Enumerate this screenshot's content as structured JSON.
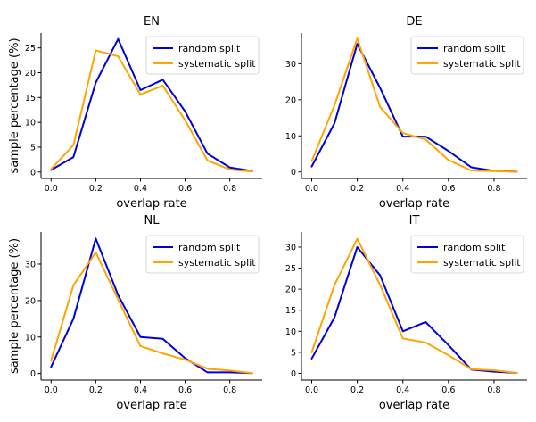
{
  "chart_data": [
    {
      "type": "line",
      "title": "EN",
      "xlabel": "overlap rate",
      "ylabel": "sample percentage (%)",
      "x": [
        0.0,
        0.1,
        0.2,
        0.3,
        0.4,
        0.5,
        0.6,
        0.7,
        0.8,
        0.9
      ],
      "xlim": [
        -0.045,
        0.945
      ],
      "ylim": [
        -1.3,
        28
      ],
      "xticks": [
        "0.0",
        "0.2",
        "0.4",
        "0.6",
        "0.8"
      ],
      "xtick_values": [
        0.0,
        0.2,
        0.4,
        0.6,
        0.8
      ],
      "yticks": [
        "0",
        "5",
        "10",
        "15",
        "20",
        "25"
      ],
      "ytick_values": [
        0,
        5,
        10,
        15,
        20,
        25
      ],
      "legend_position": "upper-right",
      "series": [
        {
          "name": "random split",
          "color": "#0000dd",
          "values": [
            0.4,
            3.0,
            18.0,
            26.8,
            16.5,
            18.6,
            12.2,
            3.7,
            0.9,
            0.2
          ]
        },
        {
          "name": "systematic split",
          "color": "#ffa500",
          "values": [
            0.6,
            5.4,
            24.5,
            23.3,
            15.6,
            17.4,
            10.4,
            2.3,
            0.5,
            0.1
          ]
        }
      ]
    },
    {
      "type": "line",
      "title": "DE",
      "xlabel": "overlap rate",
      "ylabel": "",
      "x": [
        0.0,
        0.1,
        0.2,
        0.3,
        0.4,
        0.5,
        0.6,
        0.7,
        0.8,
        0.9
      ],
      "xlim": [
        -0.045,
        0.945
      ],
      "ylim": [
        -1.8,
        38.5
      ],
      "xticks": [
        "0.0",
        "0.2",
        "0.4",
        "0.6",
        "0.8"
      ],
      "xtick_values": [
        0.0,
        0.2,
        0.4,
        0.6,
        0.8
      ],
      "yticks": [
        "0",
        "10",
        "20",
        "30"
      ],
      "ytick_values": [
        0,
        10,
        20,
        30
      ],
      "legend_position": "upper-right",
      "series": [
        {
          "name": "random split",
          "color": "#0000dd",
          "values": [
            1.5,
            13.5,
            35.5,
            23.3,
            9.8,
            9.8,
            5.8,
            1.3,
            0.3,
            0.1
          ]
        },
        {
          "name": "systematic split",
          "color": "#ffa500",
          "values": [
            3.0,
            18.5,
            37.0,
            18.0,
            10.8,
            9.0,
            3.3,
            0.4,
            0.2,
            0.1
          ]
        }
      ]
    },
    {
      "type": "line",
      "title": "NL",
      "xlabel": "overlap rate",
      "ylabel": "sample percentage (%)",
      "x": [
        0.0,
        0.1,
        0.2,
        0.3,
        0.4,
        0.5,
        0.6,
        0.7,
        0.8,
        0.9
      ],
      "xlim": [
        -0.045,
        0.945
      ],
      "ylim": [
        -1.8,
        38.8
      ],
      "xticks": [
        "0.0",
        "0.2",
        "0.4",
        "0.6",
        "0.8"
      ],
      "xtick_values": [
        0.0,
        0.2,
        0.4,
        0.6,
        0.8
      ],
      "yticks": [
        "0",
        "10",
        "20",
        "30"
      ],
      "ytick_values": [
        0,
        10,
        20,
        30
      ],
      "legend_position": "upper-right",
      "series": [
        {
          "name": "random split",
          "color": "#0000dd",
          "values": [
            1.8,
            15.0,
            37.0,
            21.5,
            10.0,
            9.5,
            4.2,
            0.3,
            0.3,
            0.1
          ]
        },
        {
          "name": "systematic split",
          "color": "#ffa500",
          "values": [
            3.5,
            24.2,
            33.2,
            20.3,
            7.5,
            5.5,
            3.8,
            1.3,
            0.8,
            0.1
          ]
        }
      ]
    },
    {
      "type": "line",
      "title": "IT",
      "xlabel": "overlap rate",
      "ylabel": "",
      "x": [
        0.0,
        0.1,
        0.2,
        0.3,
        0.4,
        0.5,
        0.6,
        0.7,
        0.8,
        0.9
      ],
      "xlim": [
        -0.045,
        0.945
      ],
      "ylim": [
        -1.6,
        33.6
      ],
      "xticks": [
        "0.0",
        "0.2",
        "0.4",
        "0.6",
        "0.8"
      ],
      "xtick_values": [
        0.0,
        0.2,
        0.4,
        0.6,
        0.8
      ],
      "yticks": [
        "0",
        "5",
        "10",
        "15",
        "20",
        "25",
        "30"
      ],
      "ytick_values": [
        0,
        5,
        10,
        15,
        20,
        25,
        30
      ],
      "legend_position": "upper-right",
      "series": [
        {
          "name": "random split",
          "color": "#0000dd",
          "values": [
            3.5,
            13.3,
            30.0,
            23.3,
            10.0,
            12.2,
            6.7,
            0.9,
            0.4,
            0.1
          ]
        },
        {
          "name": "systematic split",
          "color": "#ffa500",
          "values": [
            5.0,
            21.0,
            32.0,
            21.0,
            8.3,
            7.3,
            4.3,
            1.0,
            0.7,
            0.1
          ]
        }
      ]
    }
  ]
}
